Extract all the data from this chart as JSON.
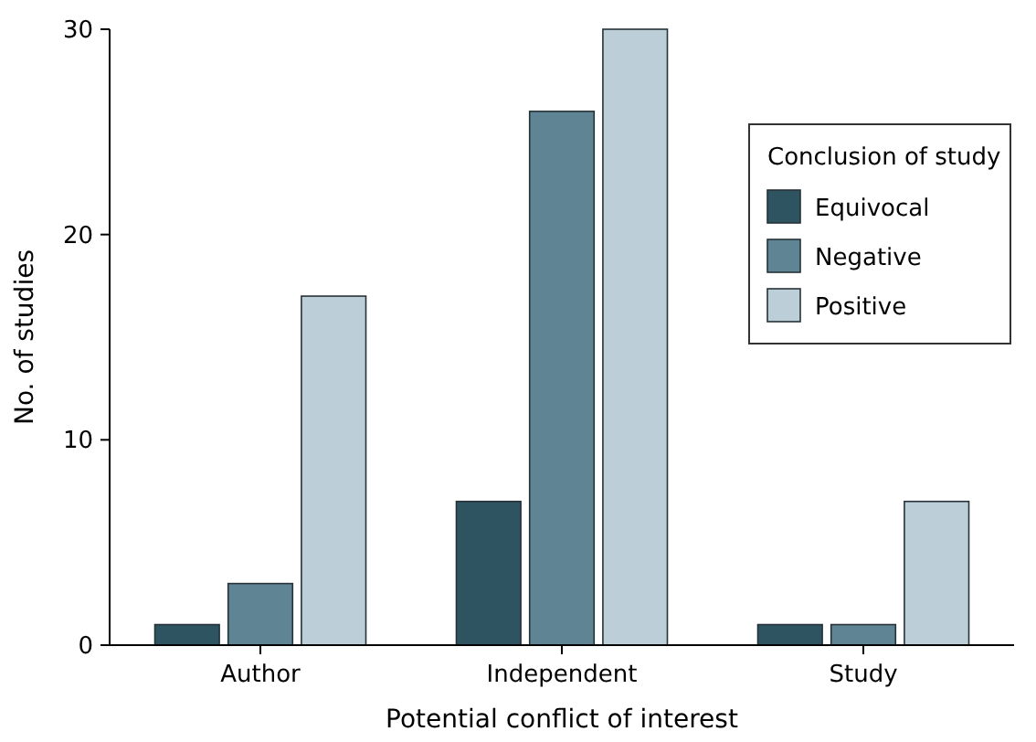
{
  "chart_data": {
    "type": "bar",
    "xlabel": "Potential conflict of interest",
    "ylabel": "No. of studies",
    "legend_title": "Conclusion of study",
    "legend": "top right",
    "grid": false,
    "categories": [
      "Author",
      "Independent",
      "Study"
    ],
    "series": [
      {
        "name": "Equivocal",
        "color": "#2e5462",
        "values": [
          1,
          7,
          1
        ]
      },
      {
        "name": "Negative",
        "color": "#5f8493",
        "values": [
          3,
          26,
          1
        ]
      },
      {
        "name": "Positive",
        "color": "#bccfd8",
        "values": [
          17,
          30,
          7
        ]
      }
    ],
    "ylim": [
      0,
      30
    ],
    "yticks": [
      0,
      10,
      20,
      30
    ]
  }
}
